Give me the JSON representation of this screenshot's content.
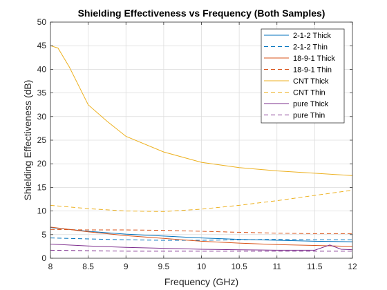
{
  "chart_data": {
    "type": "line",
    "title": "Shielding Effectiveness vs Frequency (Both Samples)",
    "xlabel": "Frequency (GHz)",
    "ylabel": "Shielding Effectiveness (dB)",
    "xlim": [
      8,
      12
    ],
    "ylim": [
      0,
      50
    ],
    "xticks": [
      8,
      8.5,
      9,
      9.5,
      10,
      10.5,
      11,
      11.5,
      12
    ],
    "xtick_labels": [
      "8",
      "8.5",
      "9",
      "9.5",
      "10",
      "10.5",
      "11",
      "11.5",
      "12"
    ],
    "yticks": [
      0,
      5,
      10,
      15,
      20,
      25,
      30,
      35,
      40,
      45,
      50
    ],
    "ytick_labels": [
      "0",
      "5",
      "10",
      "15",
      "20",
      "25",
      "30",
      "35",
      "40",
      "45",
      "50"
    ],
    "grid": true,
    "legend_position": "top-right",
    "series": [
      {
        "name": "2-1-2 Thick",
        "color": "#0072BD",
        "dash": "solid",
        "points": [
          [
            8,
            6.5
          ],
          [
            8.5,
            5.7
          ],
          [
            9,
            5.1
          ],
          [
            9.5,
            4.7
          ],
          [
            10,
            4.3
          ],
          [
            10.5,
            4.0
          ],
          [
            11,
            3.8
          ],
          [
            11.5,
            3.6
          ],
          [
            12,
            3.5
          ]
        ]
      },
      {
        "name": "2-1-2 Thin",
        "color": "#0072BD",
        "dash": "dashed",
        "points": [
          [
            8,
            4.3
          ],
          [
            8.5,
            4.1
          ],
          [
            9,
            3.9
          ],
          [
            9.5,
            3.8
          ],
          [
            10,
            3.8
          ],
          [
            10.5,
            3.9
          ],
          [
            11,
            4.0
          ],
          [
            11.5,
            3.9
          ],
          [
            12,
            3.9
          ]
        ]
      },
      {
        "name": "18-9-1 Thick",
        "color": "#D95319",
        "dash": "solid",
        "points": [
          [
            8,
            6.6
          ],
          [
            8.5,
            5.6
          ],
          [
            9,
            4.8
          ],
          [
            9.5,
            4.2
          ],
          [
            10,
            3.6
          ],
          [
            10.5,
            3.2
          ],
          [
            11,
            2.9
          ],
          [
            11.5,
            2.7
          ],
          [
            12,
            2.5
          ]
        ]
      },
      {
        "name": "18-9-1 Thin",
        "color": "#D95319",
        "dash": "dashed",
        "points": [
          [
            8,
            6.1
          ],
          [
            8.5,
            6.0
          ],
          [
            9,
            6.0
          ],
          [
            9.5,
            5.9
          ],
          [
            10,
            5.7
          ],
          [
            10.5,
            5.5
          ],
          [
            11,
            5.3
          ],
          [
            11.5,
            5.2
          ],
          [
            12,
            5.2
          ]
        ]
      },
      {
        "name": "CNT Thick",
        "color": "#EDB120",
        "dash": "solid",
        "points": [
          [
            8,
            45.0
          ],
          [
            8.1,
            44.5
          ],
          [
            8.25,
            40.5
          ],
          [
            8.5,
            32.5
          ],
          [
            8.75,
            29.0
          ],
          [
            9,
            25.8
          ],
          [
            9.5,
            22.5
          ],
          [
            10,
            20.3
          ],
          [
            10.5,
            19.2
          ],
          [
            11,
            18.5
          ],
          [
            11.5,
            18.0
          ],
          [
            12,
            17.5
          ]
        ]
      },
      {
        "name": "CNT Thin",
        "color": "#EDB120",
        "dash": "dashed",
        "points": [
          [
            8,
            11.2
          ],
          [
            8.5,
            10.5
          ],
          [
            9,
            10.0
          ],
          [
            9.5,
            9.9
          ],
          [
            10,
            10.4
          ],
          [
            10.5,
            11.2
          ],
          [
            11,
            12.2
          ],
          [
            11.5,
            13.3
          ],
          [
            12,
            14.4
          ]
        ]
      },
      {
        "name": "pure Thick",
        "color": "#7E2F8E",
        "dash": "solid",
        "points": [
          [
            8,
            3.0
          ],
          [
            8.5,
            2.6
          ],
          [
            9,
            2.3
          ],
          [
            9.5,
            2.1
          ],
          [
            10,
            1.9
          ],
          [
            10.5,
            1.8
          ],
          [
            11,
            1.7
          ],
          [
            11.5,
            1.7
          ],
          [
            11.7,
            2.8
          ],
          [
            11.85,
            1.9
          ],
          [
            12,
            1.8
          ]
        ]
      },
      {
        "name": "pure Thin",
        "color": "#7E2F8E",
        "dash": "dashed",
        "points": [
          [
            8,
            1.7
          ],
          [
            8.5,
            1.6
          ],
          [
            9,
            1.5
          ],
          [
            9.5,
            1.5
          ],
          [
            10,
            1.5
          ],
          [
            10.5,
            1.5
          ],
          [
            11,
            1.5
          ],
          [
            11.5,
            1.5
          ],
          [
            12,
            1.5
          ]
        ]
      }
    ]
  }
}
